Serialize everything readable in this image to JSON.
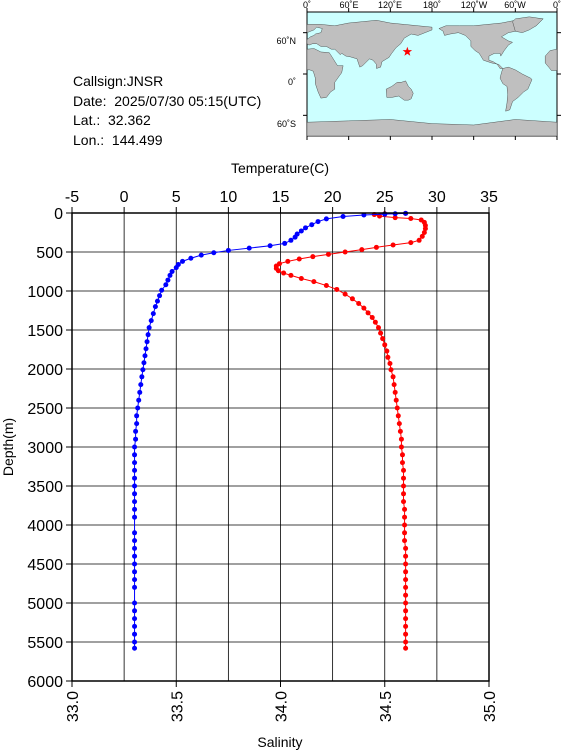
{
  "meta": {
    "callsign": "Callsign:JNSR",
    "date": "Date:  2025/07/30 05:15(UTC)",
    "lat": "Lat.:  32.362",
    "lon": "Lon.:  144.499"
  },
  "map": {
    "lon_labels": [
      "0˚",
      "60˚E",
      "120˚E",
      "180˚",
      "120˚W",
      "60˚W",
      "0˚"
    ],
    "lat_labels": [
      "60˚N",
      "0˚",
      "60˚S"
    ],
    "station_marker": {
      "lat": 32.362,
      "lon": 144.499
    },
    "colors": {
      "ocean": "#ccffff",
      "land": "#bfbfbf",
      "marker": "#ff0000"
    }
  },
  "chart_data": {
    "type": "line",
    "title": "",
    "top_axis": {
      "label": "Temperature(C)",
      "range": [
        -5,
        35
      ],
      "ticks": [
        -5,
        0,
        5,
        10,
        15,
        20,
        25,
        30,
        35
      ]
    },
    "bottom_axis": {
      "label": "Salinity",
      "range": [
        33.0,
        35.0
      ],
      "ticks": [
        "33.0",
        "33.5",
        "34.0",
        "34.5",
        "35.0"
      ]
    },
    "y_axis": {
      "label": "Depth(m)",
      "range": [
        0,
        6000
      ],
      "inverted": true,
      "ticks": [
        0,
        500,
        1000,
        1500,
        2000,
        2500,
        3000,
        3500,
        4000,
        4500,
        5000,
        5500,
        6000
      ]
    },
    "grid": true,
    "series": [
      {
        "axis": "temperature",
        "color": "#ff0000",
        "points": [
          [
            27,
            5
          ],
          [
            25,
            10
          ],
          [
            24,
            20
          ],
          [
            24.5,
            40
          ],
          [
            26,
            60
          ],
          [
            27.5,
            70
          ],
          [
            28.5,
            90
          ],
          [
            28.8,
            120
          ],
          [
            28.9,
            160
          ],
          [
            28.9,
            200
          ],
          [
            28.8,
            250
          ],
          [
            28.6,
            300
          ],
          [
            28.3,
            350
          ],
          [
            27.5,
            380
          ],
          [
            25.8,
            410
          ],
          [
            24.2,
            440
          ],
          [
            22.8,
            470
          ],
          [
            21.2,
            500
          ],
          [
            19.6,
            530
          ],
          [
            18.1,
            560
          ],
          [
            16.8,
            590
          ],
          [
            15.7,
            620
          ],
          [
            14.9,
            650
          ],
          [
            14.6,
            680
          ],
          [
            14.6,
            710
          ],
          [
            14.8,
            740
          ],
          [
            15.3,
            770
          ],
          [
            16.0,
            800
          ],
          [
            17.0,
            840
          ],
          [
            18.2,
            880
          ],
          [
            19.4,
            930
          ],
          [
            20.4,
            980
          ],
          [
            21.2,
            1040
          ],
          [
            21.9,
            1100
          ],
          [
            22.5,
            1160
          ],
          [
            23.0,
            1220
          ],
          [
            23.4,
            1280
          ],
          [
            23.8,
            1340
          ],
          [
            24.1,
            1400
          ],
          [
            24.4,
            1470
          ],
          [
            24.6,
            1540
          ],
          [
            24.8,
            1610
          ],
          [
            25.0,
            1690
          ],
          [
            25.2,
            1770
          ],
          [
            25.3,
            1850
          ],
          [
            25.5,
            1930
          ],
          [
            25.6,
            2010
          ],
          [
            25.8,
            2100
          ],
          [
            25.9,
            2200
          ],
          [
            26.0,
            2300
          ],
          [
            26.1,
            2400
          ],
          [
            26.2,
            2500
          ],
          [
            26.3,
            2600
          ],
          [
            26.4,
            2700
          ],
          [
            26.5,
            2800
          ],
          [
            26.6,
            2900
          ],
          [
            26.6,
            3000
          ],
          [
            26.7,
            3100
          ],
          [
            26.7,
            3200
          ],
          [
            26.8,
            3300
          ],
          [
            26.8,
            3400
          ],
          [
            26.8,
            3500
          ],
          [
            26.8,
            3600
          ],
          [
            26.8,
            3700
          ],
          [
            26.9,
            3800
          ],
          [
            26.9,
            3900
          ],
          [
            26.9,
            4000
          ],
          [
            26.9,
            4100
          ],
          [
            26.9,
            4200
          ],
          [
            27.0,
            4300
          ],
          [
            27.0,
            4400
          ],
          [
            27.0,
            4500
          ],
          [
            27.0,
            4600
          ],
          [
            27.0,
            4700
          ],
          [
            27.0,
            4800
          ],
          [
            27.0,
            4900
          ],
          [
            27.0,
            5000
          ],
          [
            27.0,
            5100
          ],
          [
            27.0,
            5200
          ],
          [
            27.0,
            5300
          ],
          [
            27.0,
            5400
          ],
          [
            27.0,
            5500
          ],
          [
            27.0,
            5580
          ]
        ]
      },
      {
        "axis": "salinity",
        "color": "#0000ff",
        "points": [
          [
            34.6,
            5
          ],
          [
            34.55,
            10
          ],
          [
            34.5,
            15
          ],
          [
            34.4,
            25
          ],
          [
            34.3,
            45
          ],
          [
            34.22,
            75
          ],
          [
            34.18,
            110
          ],
          [
            34.15,
            150
          ],
          [
            34.12,
            190
          ],
          [
            34.1,
            230
          ],
          [
            34.08,
            270
          ],
          [
            34.07,
            310
          ],
          [
            34.05,
            350
          ],
          [
            34.02,
            390
          ],
          [
            33.95,
            420
          ],
          [
            33.85,
            450
          ],
          [
            33.75,
            480
          ],
          [
            33.68,
            510
          ],
          [
            33.62,
            540
          ],
          [
            33.57,
            580
          ],
          [
            33.53,
            620
          ],
          [
            33.51,
            660
          ],
          [
            33.5,
            700
          ],
          [
            33.48,
            750
          ],
          [
            33.47,
            800
          ],
          [
            33.46,
            860
          ],
          [
            33.45,
            920
          ],
          [
            33.43,
            990
          ],
          [
            33.42,
            1060
          ],
          [
            33.41,
            1130
          ],
          [
            33.4,
            1200
          ],
          [
            33.39,
            1290
          ],
          [
            33.38,
            1380
          ],
          [
            33.37,
            1470
          ],
          [
            33.365,
            1560
          ],
          [
            33.36,
            1650
          ],
          [
            33.355,
            1740
          ],
          [
            33.35,
            1830
          ],
          [
            33.345,
            1920
          ],
          [
            33.34,
            2010
          ],
          [
            33.335,
            2100
          ],
          [
            33.33,
            2200
          ],
          [
            33.325,
            2300
          ],
          [
            33.32,
            2400
          ],
          [
            33.315,
            2500
          ],
          [
            33.31,
            2600
          ],
          [
            33.31,
            2700
          ],
          [
            33.305,
            2800
          ],
          [
            33.305,
            2900
          ],
          [
            33.3,
            3000
          ],
          [
            33.3,
            3100
          ],
          [
            33.3,
            3200
          ],
          [
            33.3,
            3300
          ],
          [
            33.3,
            3400
          ],
          [
            33.3,
            3500
          ],
          [
            33.3,
            3600
          ],
          [
            33.3,
            3700
          ],
          [
            33.3,
            3800
          ],
          [
            33.3,
            3900
          ],
          [
            33.3,
            4100
          ],
          [
            33.3,
            4200
          ],
          [
            33.3,
            4300
          ],
          [
            33.3,
            4400
          ],
          [
            33.3,
            4500
          ],
          [
            33.3,
            4600
          ],
          [
            33.3,
            4700
          ],
          [
            33.3,
            4800
          ],
          [
            33.3,
            5000
          ],
          [
            33.3,
            5100
          ],
          [
            33.3,
            5200
          ],
          [
            33.3,
            5300
          ],
          [
            33.3,
            5400
          ],
          [
            33.3,
            5500
          ],
          [
            33.3,
            5580
          ]
        ]
      }
    ]
  }
}
